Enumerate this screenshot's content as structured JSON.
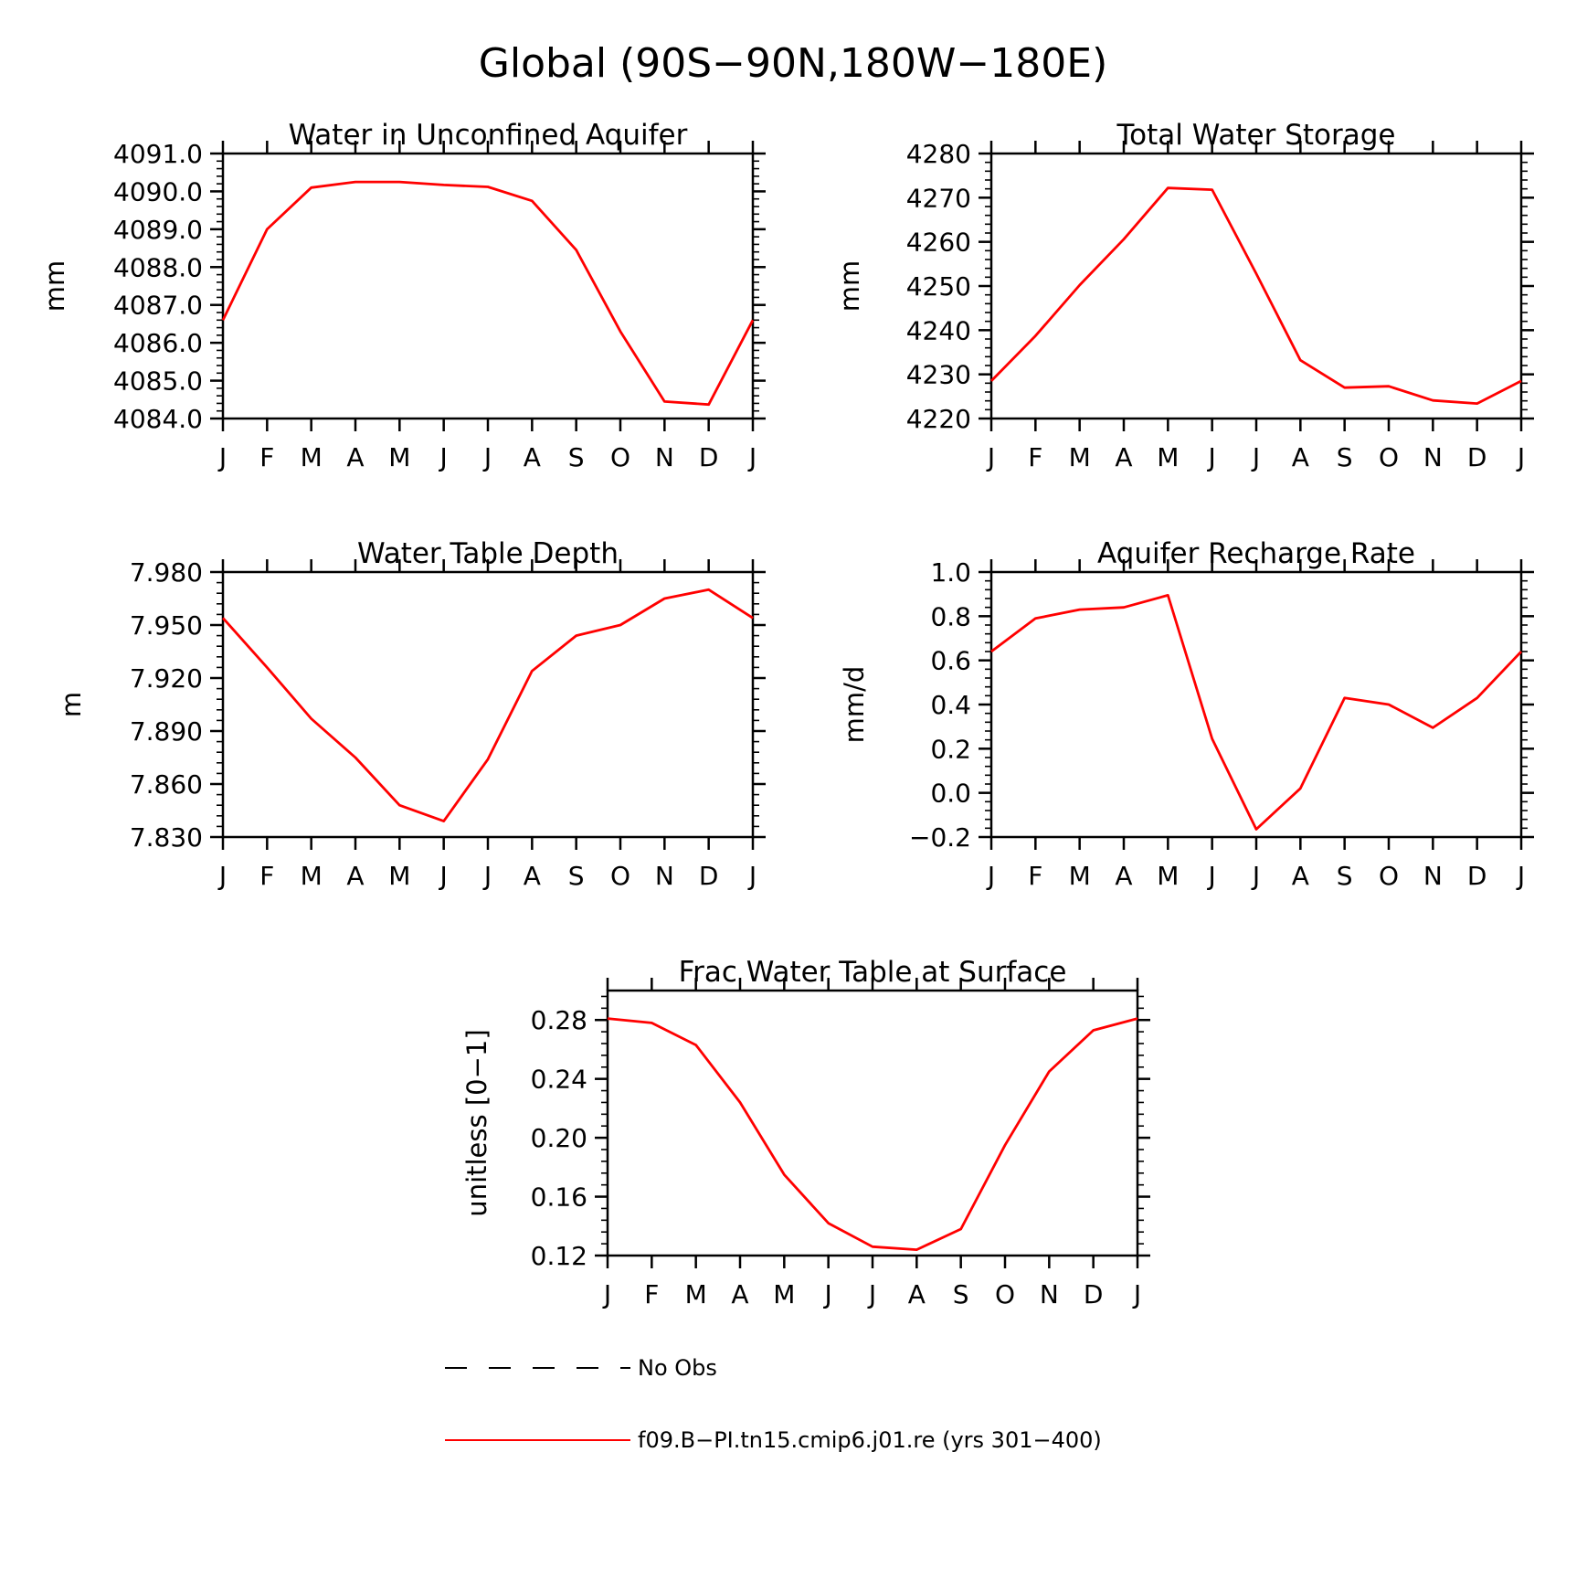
{
  "figure": {
    "title": "Global (90S−90N,180W−180E)",
    "legend": [
      {
        "label": "No Obs",
        "color": "#000000",
        "dash": true
      },
      {
        "label": "f09.B−PI.tn15.cmip6.j01.re (yrs 301−400)",
        "color": "#ff0000",
        "dash": false
      }
    ]
  },
  "chart_data": [
    {
      "type": "line",
      "title": "Water in Unconfined Aquifer",
      "ylabel": "mm",
      "xlabel": "",
      "categories": [
        "J",
        "F",
        "M",
        "A",
        "M",
        "J",
        "J",
        "A",
        "S",
        "O",
        "N",
        "D",
        "J"
      ],
      "ylim": [
        4084.0,
        4091.0
      ],
      "yticks": [
        4084.0,
        4085.0,
        4086.0,
        4087.0,
        4088.0,
        4089.0,
        4090.0,
        4091.0
      ],
      "ytick_labels": [
        "4084.0",
        "4085.0",
        "4086.0",
        "4087.0",
        "4088.0",
        "4089.0",
        "4090.0",
        "4091.0"
      ],
      "series": [
        {
          "color": "#ff0000",
          "values": [
            4086.6,
            4089.0,
            4090.1,
            4090.25,
            4090.25,
            4090.17,
            4090.12,
            4089.75,
            4088.45,
            4086.3,
            4084.45,
            4084.37,
            4086.6
          ]
        }
      ]
    },
    {
      "type": "line",
      "title": "Total Water Storage",
      "ylabel": "mm",
      "xlabel": "",
      "categories": [
        "J",
        "F",
        "M",
        "A",
        "M",
        "J",
        "J",
        "A",
        "S",
        "O",
        "N",
        "D",
        "J"
      ],
      "ylim": [
        4220,
        4280
      ],
      "yticks": [
        4220,
        4230,
        4240,
        4250,
        4260,
        4270,
        4280
      ],
      "ytick_labels": [
        "4220",
        "4230",
        "4240",
        "4250",
        "4260",
        "4270",
        "4280"
      ],
      "series": [
        {
          "color": "#ff0000",
          "values": [
            4228.5,
            4238.7,
            4250.2,
            4260.6,
            4272.2,
            4271.8,
            4252.8,
            4233.2,
            4227.0,
            4227.3,
            4224.1,
            4223.4,
            4228.5
          ]
        }
      ]
    },
    {
      "type": "line",
      "title": "Water Table Depth",
      "ylabel": "m",
      "xlabel": "",
      "categories": [
        "J",
        "F",
        "M",
        "A",
        "M",
        "J",
        "J",
        "A",
        "S",
        "O",
        "N",
        "D",
        "J"
      ],
      "ylim": [
        7.83,
        7.98
      ],
      "yticks": [
        7.83,
        7.86,
        7.89,
        7.92,
        7.95,
        7.98
      ],
      "ytick_labels": [
        "7.830",
        "7.860",
        "7.890",
        "7.920",
        "7.950",
        "7.980"
      ],
      "series": [
        {
          "color": "#ff0000",
          "values": [
            7.954,
            7.926,
            7.897,
            7.875,
            7.848,
            7.839,
            7.874,
            7.924,
            7.944,
            7.95,
            7.965,
            7.97,
            7.954
          ]
        }
      ]
    },
    {
      "type": "line",
      "title": "Aquifer Recharge Rate",
      "ylabel": "mm/d",
      "xlabel": "",
      "categories": [
        "J",
        "F",
        "M",
        "A",
        "M",
        "J",
        "J",
        "A",
        "S",
        "O",
        "N",
        "D",
        "J"
      ],
      "ylim": [
        -0.2,
        1.0
      ],
      "yticks": [
        -0.2,
        0.0,
        0.2,
        0.4,
        0.6,
        0.8,
        1.0
      ],
      "ytick_labels": [
        "−0.2",
        "0.0",
        "0.2",
        "0.4",
        "0.6",
        "0.8",
        "1.0"
      ],
      "series": [
        {
          "color": "#ff0000",
          "values": [
            0.64,
            0.79,
            0.83,
            0.84,
            0.895,
            0.245,
            -0.165,
            0.02,
            0.43,
            0.4,
            0.295,
            0.43,
            0.64
          ]
        }
      ]
    },
    {
      "type": "line",
      "title": "Frac Water Table at Surface",
      "ylabel": "unitless [0−1]",
      "xlabel": "",
      "categories": [
        "J",
        "F",
        "M",
        "A",
        "M",
        "J",
        "J",
        "A",
        "S",
        "O",
        "N",
        "D",
        "J"
      ],
      "ylim": [
        0.12,
        0.3
      ],
      "yticks": [
        0.12,
        0.16,
        0.2,
        0.24,
        0.28
      ],
      "ytick_labels": [
        "0.12",
        "0.16",
        "0.20",
        "0.24",
        "0.28"
      ],
      "series": [
        {
          "color": "#ff0000",
          "values": [
            0.281,
            0.278,
            0.263,
            0.224,
            0.175,
            0.142,
            0.126,
            0.124,
            0.138,
            0.195,
            0.245,
            0.273,
            0.281
          ]
        }
      ]
    }
  ]
}
